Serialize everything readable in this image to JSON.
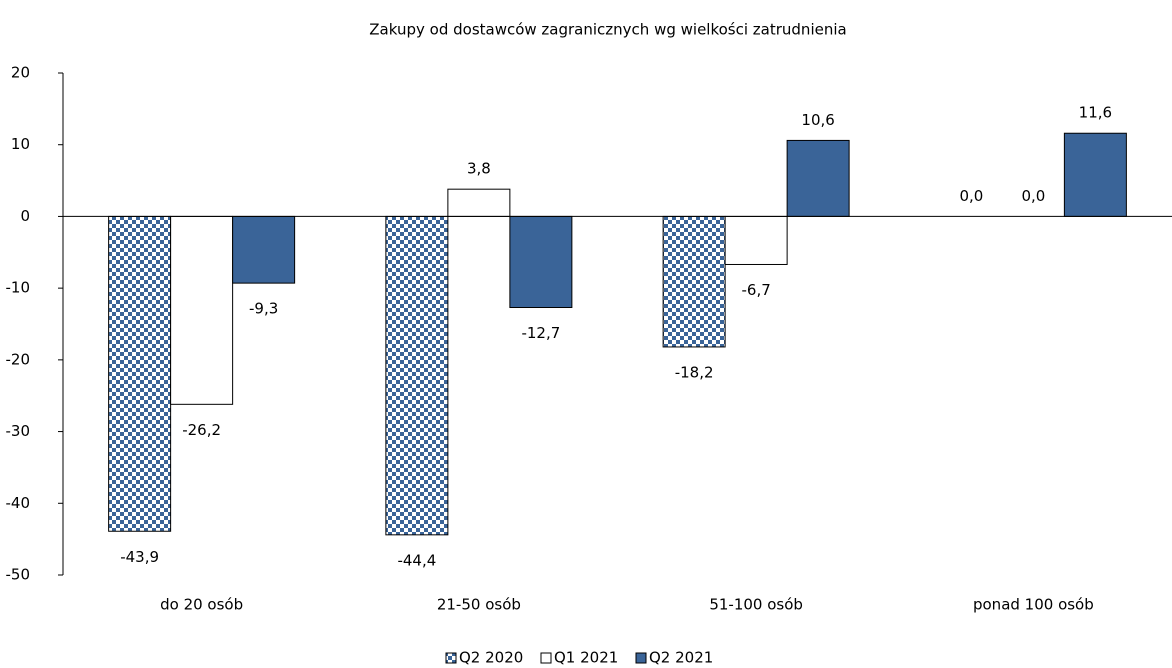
{
  "chart_data": {
    "type": "bar",
    "title": "Zakupy od dostawców zagranicznych wg wielkości zatrudnienia",
    "categories": [
      "do 20 osób",
      "21-50 osób",
      "51-100 osób",
      "ponad 100 osób"
    ],
    "series": [
      {
        "name": "Q2 2020",
        "color": "#3a6498",
        "pattern": "checker",
        "values": [
          -43.9,
          -44.4,
          -18.2,
          0.0
        ],
        "value_labels": [
          "-43,9",
          "-44,4",
          "-18,2",
          "0,0"
        ]
      },
      {
        "name": "Q1 2021",
        "color": "#ffffff",
        "values": [
          -26.2,
          3.8,
          -6.7,
          0.0
        ],
        "value_labels": [
          "-26,2",
          "3,8",
          "-6,7",
          "0,0"
        ]
      },
      {
        "name": "Q2 2021",
        "color": "#3a6498",
        "values": [
          -9.3,
          -12.7,
          10.6,
          11.6
        ],
        "value_labels": [
          "-9,3",
          "-12,7",
          "10,6",
          "11,6"
        ]
      }
    ],
    "ylim": [
      -50,
      20
    ],
    "yticks": [
      -50,
      -40,
      -30,
      -20,
      -10,
      0,
      10,
      20
    ],
    "legend": "bottom"
  }
}
